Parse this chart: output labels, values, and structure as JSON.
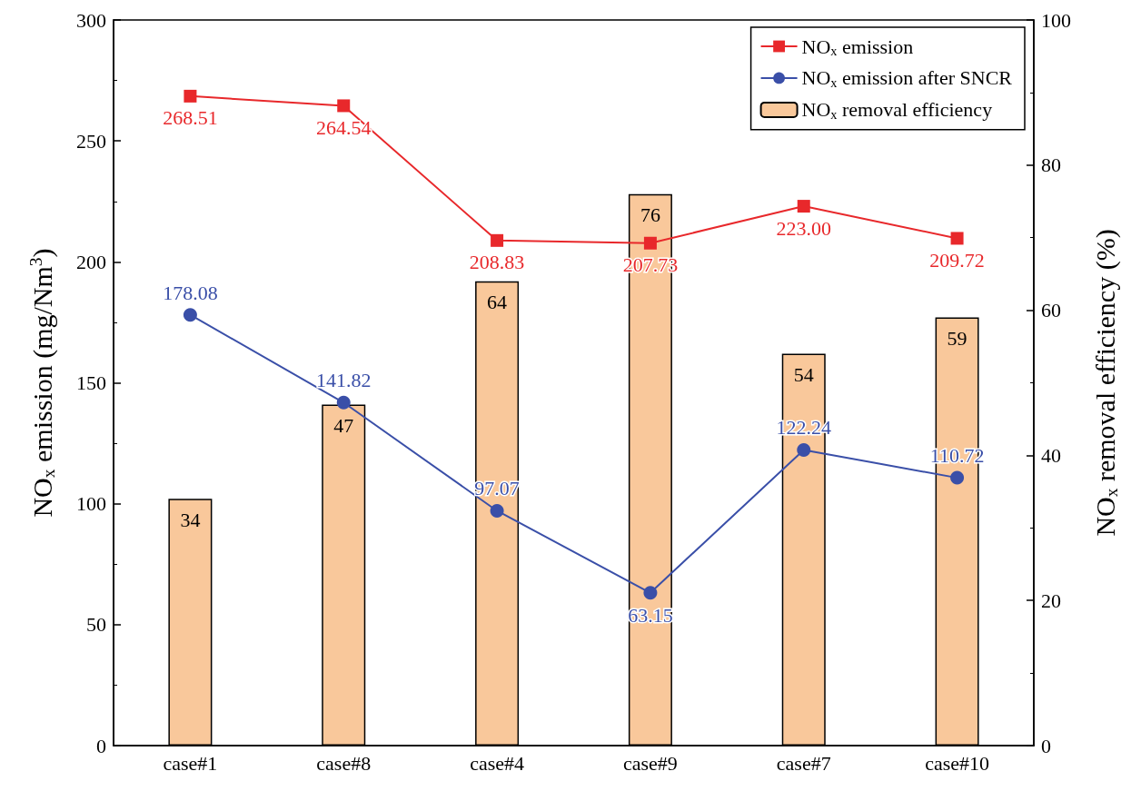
{
  "chart_data": {
    "type": "line",
    "categories": [
      "case#1",
      "case#8",
      "case#4",
      "case#9",
      "case#7",
      "case#10"
    ],
    "ylabel": "NO$_{x}$ emission (mg/Nm$^{3}$)",
    "y2label": "NO$_{x}$ removal efficiency (%)",
    "ylim": [
      0,
      300
    ],
    "yticks": [
      0,
      50,
      100,
      150,
      200,
      250,
      300
    ],
    "y2lim": [
      0,
      100
    ],
    "y2ticks": [
      0,
      20,
      40,
      60,
      80,
      100
    ],
    "series": [
      {
        "name": "NO$_{x}$ emission",
        "color": "#e8282b",
        "marker": "square",
        "values": [
          268.51,
          264.54,
          208.83,
          207.73,
          223.0,
          209.72
        ],
        "value_labels": [
          "268.51",
          "264.54",
          "208.83",
          "207.73",
          "223.00",
          "209.72"
        ]
      },
      {
        "name": "NO$_{x}$ emission after SNCR",
        "color": "#3a4fa8",
        "marker": "circle",
        "values": [
          178.08,
          141.82,
          97.07,
          63.15,
          122.24,
          110.72
        ],
        "value_labels": [
          "178.08",
          "141.82",
          "97.07",
          "63.15",
          "122.24",
          "110.72"
        ]
      },
      {
        "name": "NO$_{x}$ removal efficiency",
        "type": "bar",
        "axis": "y2",
        "color": "#f9c89b",
        "values": [
          34,
          47,
          64,
          76,
          54,
          59
        ],
        "value_labels": [
          "34",
          "47",
          "64",
          "76",
          "54",
          "59"
        ]
      }
    ],
    "legend": "top right",
    "grid": false
  }
}
